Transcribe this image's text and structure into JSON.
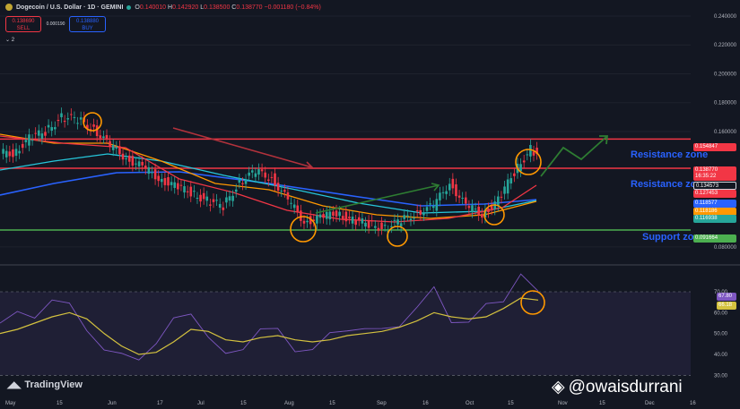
{
  "header": {
    "symbol": "Dogecoin / U.S. Dollar · 1D · GEMINI",
    "open": "O",
    "open_value": "0.140010",
    "high": "H",
    "high_value": "0.142920",
    "low": "L",
    "low_value": "0.138500",
    "close": "C",
    "close_value": "0.138770",
    "change": "−0.001180 (−0.84%)"
  },
  "trade": {
    "sell_price": "0.138690",
    "sell_label": "SELL",
    "spread": "0.000190",
    "buy_price": "0.138880",
    "buy_label": "BUY"
  },
  "layers_label": "2",
  "annotations": {
    "resistance_upper": "Resistance zone",
    "resistance_lower": "Resistance zone",
    "support": "Support zone"
  },
  "branding": {
    "tradingview": "TradingView",
    "handle": "@owaisdurrani"
  },
  "colors": {
    "up": "#26a69a",
    "down": "#f23645",
    "resistance": "#f23645",
    "support": "#4caf50",
    "zone_text": "#2962ff",
    "rsi": "#7e57c2",
    "rsi_ma": "#d4c23f",
    "circle": "#ff9800"
  },
  "chart_data": {
    "type": "line",
    "title": "",
    "x_ticks": [
      "May",
      "15",
      "Jun",
      "17",
      "Jul",
      "15",
      "Aug",
      "15",
      "Sep",
      "16",
      "Oct",
      "15",
      "Nov",
      "15",
      "Dec",
      "16"
    ],
    "price_ticks": [
      "0.240000",
      "0.220000",
      "0.200000",
      "0.180000",
      "0.160000",
      "0.080000"
    ],
    "price_ylim": [
      0.07,
      0.24
    ],
    "price_labels": [
      {
        "text": "0.154847",
        "color": "#f23645"
      },
      {
        "text": "0.138770",
        "color": "#f23645"
      },
      {
        "text": "16:35:22",
        "color": "#f23645"
      },
      {
        "text": "0.134573",
        "color": "#131722"
      },
      {
        "text": "0.127453",
        "color": "#f23645"
      },
      {
        "text": "0.118577",
        "color": "#2962ff"
      },
      {
        "text": "0.118186",
        "color": "#ff9800"
      },
      {
        "text": "0.116938",
        "color": "#26a69a"
      },
      {
        "text": "0.091664",
        "color": "#4caf50"
      }
    ],
    "levels": {
      "resistance_upper": 0.1548,
      "resistance_lower": 0.1345,
      "support": 0.0917
    },
    "close_series": [
      0.145,
      0.155,
      0.16,
      0.17,
      0.168,
      0.162,
      0.15,
      0.142,
      0.135,
      0.128,
      0.122,
      0.118,
      0.112,
      0.108,
      0.125,
      0.132,
      0.128,
      0.112,
      0.098,
      0.1,
      0.104,
      0.098,
      0.096,
      0.093,
      0.098,
      0.104,
      0.108,
      0.125,
      0.108,
      0.103,
      0.112,
      0.132,
      0.148,
      0.139
    ],
    "rsi_ticks": [
      "70.00",
      "60.00",
      "50.00",
      "40.00",
      "30.00"
    ],
    "rsi_ylim": [
      28,
      82
    ],
    "rsi_labels": [
      {
        "text": "67.80",
        "color": "#7e57c2"
      },
      {
        "text": "66.18",
        "color": "#d4c23f"
      }
    ],
    "rsi_series": [
      {
        "name": "",
        "values": [
          55,
          58,
          60,
          66,
          62,
          54,
          42,
          38,
          40,
          45,
          55,
          62,
          48,
          38,
          45,
          52,
          50,
          44,
          42,
          48,
          54,
          52,
          50,
          56,
          62,
          70,
          58,
          55,
          62,
          68,
          78,
          68
        ]
      },
      {
        "name": "",
        "values": [
          50,
          52,
          55,
          58,
          60,
          57,
          50,
          44,
          40,
          41,
          46,
          52,
          51,
          47,
          46,
          48,
          49,
          47,
          46,
          47,
          49,
          50,
          51,
          53,
          56,
          60,
          58,
          57,
          58,
          62,
          67,
          66
        ]
      }
    ]
  }
}
